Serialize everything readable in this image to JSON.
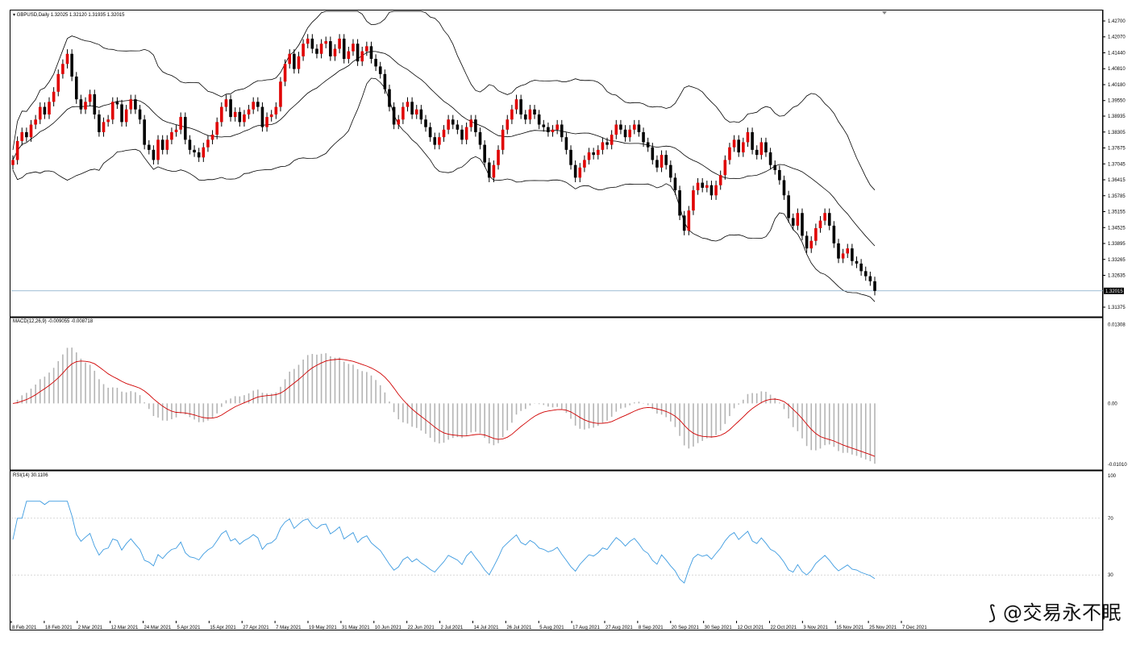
{
  "chart_header": {
    "symbol_line": "GBPUSD,Daily  1.32025 1.32120 1.31935 1.32015",
    "current_price_label": "1.32015"
  },
  "macd_header": {
    "label": "MACD(12,26,9) -0.009055 -0.008718"
  },
  "rsi_header": {
    "label": "RSI(14) 30.1106"
  },
  "watermark": {
    "text": "@交易永不眠"
  },
  "colors": {
    "bull": "#e00000",
    "bear": "#000000",
    "macd_hist": "#b4b4b4",
    "macd_signal": "#d00000",
    "rsi_line": "#3d9be0",
    "bands": "#000000"
  },
  "chart_data": [
    {
      "type": "candlestick",
      "name": "GBPUSD,Daily",
      "ylim": [
        1.31375,
        1.427
      ],
      "y_ticks": [
        "1.42700",
        "1.42070",
        "1.41440",
        "1.40810",
        "1.40180",
        "1.39550",
        "1.38935",
        "1.38305",
        "1.37675",
        "1.37045",
        "1.36415",
        "1.35785",
        "1.35155",
        "1.34525",
        "1.33895",
        "1.33265",
        "1.32635",
        "1.31375"
      ],
      "x_ticks": [
        "8 Feb 2021",
        "18 Feb 2021",
        "2 Mar 2021",
        "12 Mar 2021",
        "24 Mar 2021",
        "5 Apr 2021",
        "15 Apr 2021",
        "27 Apr 2021",
        "7 May 2021",
        "19 May 2021",
        "31 May 2021",
        "10 Jun 2021",
        "22 Jun 2021",
        "2 Jul 2021",
        "14 Jul 2021",
        "26 Jul 2021",
        "5 Aug 2021",
        "17 Aug 2021",
        "27 Aug 2021",
        "8 Sep 2021",
        "20 Sep 2021",
        "30 Sep 2021",
        "12 Oct 2021",
        "22 Oct 2021",
        "3 Nov 2021",
        "15 Nov 2021",
        "25 Nov 2021",
        "7 Dec 2021"
      ],
      "closes": [
        1.372,
        1.3795,
        1.383,
        1.381,
        1.386,
        1.388,
        1.393,
        1.39,
        1.395,
        1.399,
        1.406,
        1.41,
        1.414,
        1.405,
        1.396,
        1.392,
        1.395,
        1.398,
        1.39,
        1.383,
        1.387,
        1.388,
        1.395,
        1.394,
        1.387,
        1.392,
        1.396,
        1.392,
        1.388,
        1.378,
        1.376,
        1.372,
        1.38,
        1.376,
        1.38,
        1.383,
        1.384,
        1.389,
        1.38,
        1.376,
        1.375,
        1.373,
        1.377,
        1.38,
        1.382,
        1.387,
        1.393,
        1.396,
        1.389,
        1.391,
        1.387,
        1.39,
        1.392,
        1.395,
        1.393,
        1.385,
        1.389,
        1.39,
        1.393,
        1.403,
        1.41,
        1.414,
        1.408,
        1.413,
        1.418,
        1.42,
        1.416,
        1.414,
        1.418,
        1.419,
        1.413,
        1.416,
        1.42,
        1.412,
        1.415,
        1.418,
        1.411,
        1.415,
        1.417,
        1.412,
        1.409,
        1.406,
        1.4,
        1.393,
        1.386,
        1.388,
        1.393,
        1.395,
        1.39,
        1.392,
        1.388,
        1.385,
        1.381,
        1.378,
        1.381,
        1.384,
        1.388,
        1.386,
        1.384,
        1.38,
        1.385,
        1.388,
        1.383,
        1.378,
        1.371,
        1.365,
        1.37,
        1.376,
        1.384,
        1.388,
        1.392,
        1.396,
        1.39,
        1.388,
        1.392,
        1.39,
        1.386,
        1.385,
        1.383,
        1.384,
        1.386,
        1.381,
        1.376,
        1.37,
        1.365,
        1.369,
        1.372,
        1.375,
        1.374,
        1.376,
        1.379,
        1.378,
        1.382,
        1.386,
        1.384,
        1.381,
        1.384,
        1.386,
        1.383,
        1.379,
        1.377,
        1.372,
        1.369,
        1.374,
        1.37,
        1.365,
        1.36,
        1.35,
        1.344,
        1.352,
        1.36,
        1.363,
        1.361,
        1.362,
        1.358,
        1.362,
        1.366,
        1.372,
        1.377,
        1.38,
        1.375,
        1.379,
        1.383,
        1.376,
        1.374,
        1.379,
        1.375,
        1.37,
        1.368,
        1.364,
        1.358,
        1.349,
        1.346,
        1.351,
        1.342,
        1.337,
        1.34,
        1.345,
        1.348,
        1.351,
        1.346,
        1.339,
        1.333,
        1.335,
        1.337,
        1.332,
        1.331,
        1.328,
        1.326,
        1.324,
        1.3202
      ]
    },
    {
      "type": "bar",
      "name": "MACD(12,26,9)",
      "ylim": [
        -0.0101,
        0.013
      ],
      "y_ticks": [
        "0.01308",
        "0.00",
        "-0.01010"
      ],
      "macd_last": -0.009055,
      "signal_last": -0.008718
    },
    {
      "type": "line",
      "name": "RSI(14)",
      "ylim": [
        0,
        100
      ],
      "y_ticks": [
        "100",
        "70",
        "30"
      ],
      "levels": [
        70,
        30
      ],
      "last": 30.1106
    }
  ]
}
